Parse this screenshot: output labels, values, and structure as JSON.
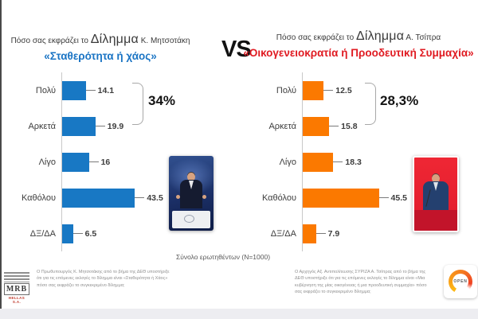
{
  "header": {
    "vs_label": "VS"
  },
  "left_panel": {
    "title_prefix": "Πόσο σας εκφράζει το ",
    "title_word": "Δίλημμα",
    "title_person": " Κ. Μητσοτάκη",
    "subtitle": "«Σταθερότητα ή χάος»",
    "subtitle_color": "#1a74c4",
    "annotation": "34%",
    "footnote": "Ο Πρωθυπουργός Κ. Μητσοτάκης από το βήμα της ΔΕΘ υποστήριξε ότι για τις επόμενες εκλογές το δίλημμα είναι «Σταθερότητα ή Χάος» πόσο σας εκφράζει το συγκεκριμένο δίλημμα;"
  },
  "right_panel": {
    "title_prefix": "Πόσο σας εκφράζει το ",
    "title_word": "Δίλημμα",
    "title_person": " Α. Τσίπρα",
    "subtitle": "«Οικογενειοκρατία ή Προοδευτική Συμμαχία»",
    "subtitle_color": "#e01b22",
    "annotation": "28,3%",
    "footnote": "Ο Αρχηγός Αξ. Αντιπολίτευσης ΣΥΡΙΖΑ Α. Τσίπρας από το βήμα της ΔΕΘ υποστήριξε ότι για τις επόμενες εκλογές το δίλημμα είναι «Μια κυβέρνηση της μίας οικογένειας ή μια προοδευτική συμμαχία» πόσο σας εκφράζει το συγκεκριμένο δίλημμα;"
  },
  "footer": {
    "sample_note": "Σύνολο ερωτηθέντων (N=1000)",
    "mrb_logo": {
      "name": "MRB",
      "subtitle": "HELLAS S.A."
    },
    "open_logo": {
      "name": "OPEN"
    }
  },
  "chart_data": [
    {
      "type": "bar",
      "orientation": "horizontal",
      "title": "Πόσο σας εκφράζει το Δίλημμα Κ. Μητσοτάκη «Σταθερότητα ή χάος»",
      "categories": [
        "Πολύ",
        "Αρκετά",
        "Λίγο",
        "Καθόλου",
        "ΔΞ/ΔΑ"
      ],
      "values": [
        14.1,
        19.9,
        16,
        43.5,
        6.5
      ],
      "value_labels": [
        "14.1",
        "19.9",
        "16",
        "43.5",
        "6.5"
      ],
      "bar_color": "#1878c4",
      "xlim": [
        0,
        50
      ],
      "grid": false,
      "annotation": {
        "label": "34%",
        "covers": [
          "Πολύ",
          "Αρκετά"
        ]
      }
    },
    {
      "type": "bar",
      "orientation": "horizontal",
      "title": "Πόσο σας εκφράζει το Δίλημμα Α. Τσίπρα «Οικογενειοκρατία ή Προοδευτική Συμμαχία»",
      "categories": [
        "Πολύ",
        "Αρκετά",
        "Λίγο",
        "Καθόλου",
        "ΔΞ/ΔΑ"
      ],
      "values": [
        12.5,
        15.8,
        18.3,
        45.5,
        7.9
      ],
      "value_labels": [
        "12.5",
        "15.8",
        "18.3",
        "45.5",
        "7.9"
      ],
      "bar_color": "#fb7900",
      "xlim": [
        0,
        50
      ],
      "grid": false,
      "annotation": {
        "label": "28,3%",
        "covers": [
          "Πολύ",
          "Αρκετά"
        ]
      }
    }
  ]
}
